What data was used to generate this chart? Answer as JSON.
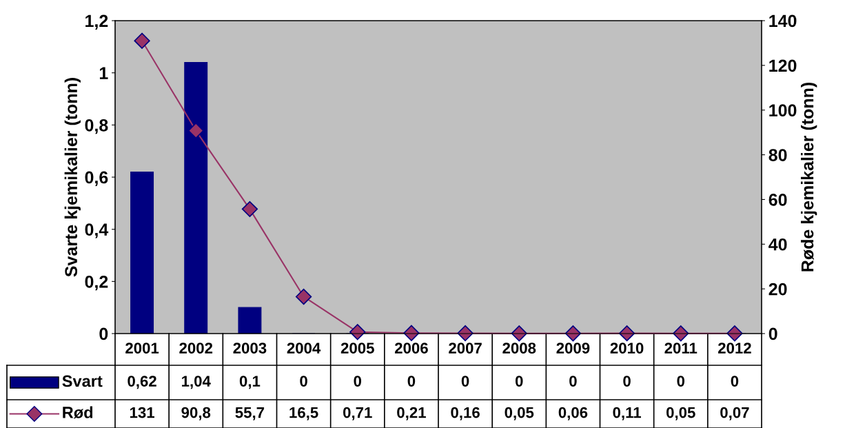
{
  "chart_data": {
    "type": "bar",
    "categories": [
      "2001",
      "2002",
      "2003",
      "2004",
      "2005",
      "2006",
      "2007",
      "2008",
      "2009",
      "2010",
      "2011",
      "2012"
    ],
    "series": [
      {
        "name": "Svart",
        "color": "#000080",
        "values": [
          0.62,
          1.04,
          0.1,
          0,
          0,
          0,
          0,
          0,
          0,
          0,
          0,
          0
        ],
        "value_labels": [
          "0,62",
          "1,04",
          "0,1",
          "0",
          "0",
          "0",
          "0",
          "0",
          "0",
          "0",
          "0",
          "0"
        ]
      },
      {
        "name": "Rød",
        "type": "line",
        "axis": "y2",
        "color": "#993366",
        "marker": "diamond",
        "values": [
          131,
          90.8,
          55.7,
          16.5,
          0.71,
          0.21,
          0.16,
          0.05,
          0.06,
          0.11,
          0.05,
          0.07
        ],
        "value_labels": [
          "131",
          "90,8",
          "55,7",
          "16,5",
          "0,71",
          "0,21",
          "0,16",
          "0,05",
          "0,06",
          "0,11",
          "0,05",
          "0,07"
        ]
      }
    ],
    "ylabel": "Svarte kjemikalier (tonn)",
    "y2label": "Røde kjemikalier (tonn)",
    "ylim": [
      0,
      1.2
    ],
    "yticks": [
      0,
      {
        "value": 0.2,
        "label": "0,2"
      },
      {
        "value": 0.4,
        "label": "0,4"
      },
      {
        "value": 0.6,
        "label": "0,6"
      },
      {
        "value": 0.8,
        "label": "0,8"
      },
      1,
      {
        "value": 1.2,
        "label": "1,2"
      }
    ],
    "y2lim": [
      0,
      140
    ],
    "y2ticks": [
      0,
      20,
      40,
      60,
      80,
      100,
      120,
      140
    ],
    "grid": false,
    "legend": "bottom left"
  }
}
